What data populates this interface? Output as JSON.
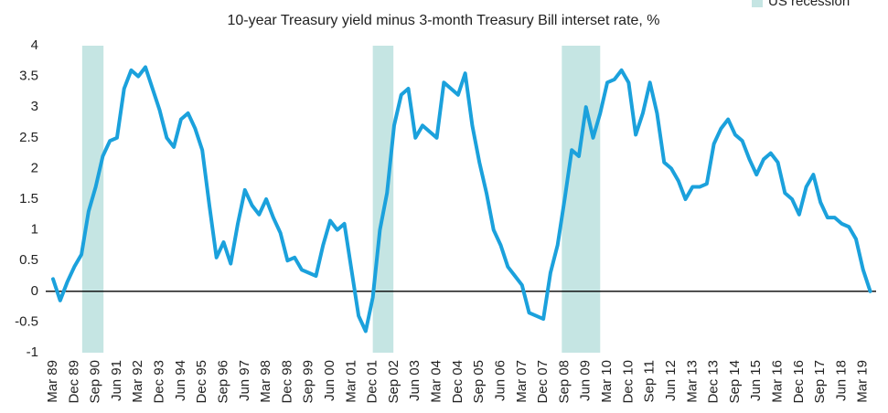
{
  "chart_data": {
    "type": "line",
    "subtitle": "10-year Treasury yield minus 3-month Treasury Bill interset rate, %",
    "categories": [
      "Mar 89",
      null,
      null,
      "Dec 89",
      null,
      null,
      "Sep 90",
      null,
      null,
      "Jun 91",
      null,
      null,
      "Mar 92",
      null,
      null,
      "Dec 93",
      null,
      null,
      "Jun 94",
      null,
      null,
      "Dec 95",
      null,
      null,
      "Sep 96",
      null,
      null,
      "Jun 97",
      null,
      null,
      "Mar 98",
      null,
      null,
      "Dec 98",
      null,
      null,
      "Sep 99",
      null,
      null,
      "Jun 00",
      null,
      null,
      "Mar 01",
      null,
      null,
      "Dec 01",
      null,
      null,
      "Sep 02",
      null,
      null,
      "Jun 03",
      null,
      null,
      "Mar 04",
      null,
      null,
      "Dec 04",
      null,
      null,
      "Sep 05",
      null,
      null,
      "Jun 06",
      null,
      null,
      "Mar 07",
      null,
      null,
      "Dec 07",
      null,
      null,
      "Sep 08",
      null,
      null,
      "Jun 09",
      null,
      null,
      "Mar 10",
      null,
      null,
      "Dec 10",
      null,
      null,
      "Sep 11",
      null,
      null,
      "Jun 12",
      null,
      null,
      "Mar 13",
      null,
      null,
      "Dec 13",
      null,
      null,
      "Sep 14",
      null,
      null,
      "Jun 15",
      null,
      null,
      "Mar 16",
      null,
      null,
      "Dec 16",
      null,
      null,
      "Sep 17",
      null,
      null,
      "Jun 18",
      null,
      null,
      "Mar 19",
      null
    ],
    "series": [
      {
        "color": "#1ba1dc",
        "values": [
          0.2,
          -0.15,
          0.15,
          0.4,
          0.6,
          1.3,
          1.7,
          2.2,
          2.45,
          2.5,
          3.3,
          3.6,
          3.5,
          3.65,
          3.3,
          2.95,
          2.5,
          2.35,
          2.8,
          2.9,
          2.65,
          2.3,
          1.4,
          0.55,
          0.8,
          0.45,
          1.1,
          1.65,
          1.4,
          1.25,
          1.5,
          1.2,
          0.95,
          0.5,
          0.55,
          0.35,
          0.3,
          0.25,
          0.75,
          1.15,
          1.0,
          1.1,
          0.35,
          -0.4,
          -0.65,
          -0.1,
          1.0,
          1.6,
          2.7,
          3.2,
          3.3,
          2.5,
          2.7,
          2.6,
          2.5,
          3.4,
          3.3,
          3.2,
          3.55,
          2.7,
          2.1,
          1.6,
          1.0,
          0.75,
          0.4,
          0.25,
          0.1,
          -0.35,
          -0.4,
          -0.45,
          0.3,
          0.75,
          1.5,
          2.3,
          2.2,
          3.0,
          2.5,
          2.9,
          3.4,
          3.45,
          3.6,
          3.4,
          2.55,
          2.9,
          3.4,
          2.9,
          2.1,
          2.0,
          1.8,
          1.5,
          1.7,
          1.7,
          1.75,
          2.4,
          2.65,
          2.8,
          2.55,
          2.45,
          2.15,
          1.9,
          2.15,
          2.25,
          2.1,
          1.6,
          1.5,
          1.25,
          1.7,
          1.9,
          1.45,
          1.2,
          1.2,
          1.1,
          1.05,
          0.85,
          0.35,
          0.0
        ]
      }
    ],
    "recessions": {
      "name": "US recession",
      "color": "#c5e5e3",
      "bands": [
        {
          "start": 4.1,
          "end": 7.1
        },
        {
          "start": 45.0,
          "end": 47.9
        },
        {
          "start": 71.6,
          "end": 77.0
        }
      ]
    },
    "ylim": [
      -1,
      4
    ],
    "yticks": [
      -1,
      -0.5,
      0,
      0.5,
      1,
      1.5,
      2,
      2.5,
      3,
      3.5,
      4
    ],
    "zero_line": true
  }
}
